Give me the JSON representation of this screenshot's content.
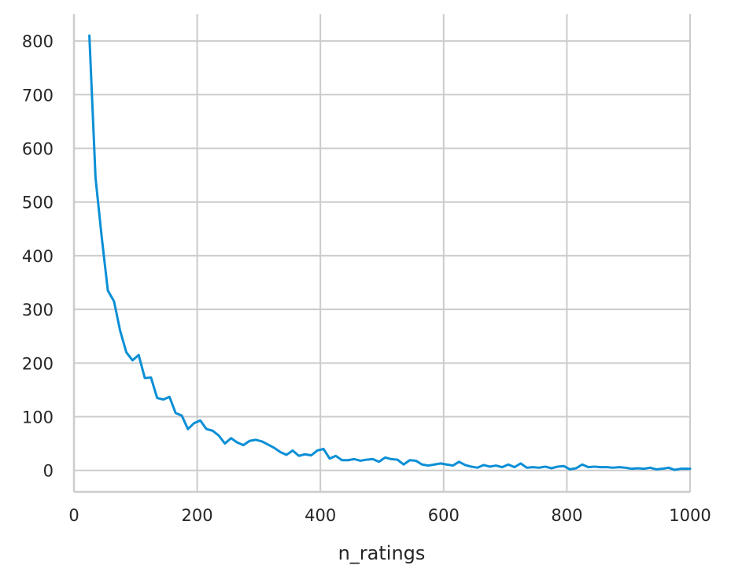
{
  "chart_data": {
    "type": "line",
    "title": "",
    "xlabel": "n_ratings",
    "ylabel": "",
    "xlim": [
      0,
      1000
    ],
    "ylim": [
      -40,
      850
    ],
    "xticks": [
      0,
      200,
      400,
      600,
      800,
      1000
    ],
    "yticks": [
      0,
      100,
      200,
      300,
      400,
      500,
      600,
      700,
      800
    ],
    "grid": true,
    "legend": "none",
    "line_color": "#0a8fd6",
    "series": [
      {
        "x": [
          25,
          35,
          45,
          55,
          65,
          75,
          85,
          95,
          105,
          115,
          125,
          135,
          145,
          155,
          165,
          175,
          185,
          195,
          205,
          215,
          225,
          235,
          245,
          255,
          265,
          275,
          285,
          295,
          305,
          315,
          325,
          335,
          345,
          355,
          365,
          375,
          385,
          395,
          405,
          415,
          425,
          435,
          445,
          455,
          465,
          475,
          485,
          495,
          505,
          515,
          525,
          535,
          545,
          555,
          565,
          575,
          585,
          595,
          605,
          615,
          625,
          635,
          645,
          655,
          665,
          675,
          685,
          695,
          705,
          715,
          725,
          735,
          745,
          755,
          765,
          775,
          785,
          795,
          805,
          815,
          825,
          835,
          845,
          855,
          865,
          875,
          885,
          895,
          905,
          915,
          925,
          935,
          945,
          955,
          965,
          975,
          985,
          995,
          1000
        ],
        "y": [
          810,
          545,
          435,
          335,
          315,
          260,
          220,
          205,
          215,
          172,
          173,
          135,
          132,
          137,
          107,
          102,
          77,
          88,
          93,
          77,
          74,
          65,
          50,
          60,
          52,
          47,
          55,
          57,
          54,
          48,
          42,
          34,
          29,
          37,
          27,
          30,
          28,
          37,
          40,
          22,
          27,
          19,
          19,
          21,
          18,
          20,
          21,
          16,
          24,
          21,
          20,
          11,
          19,
          18,
          11,
          9,
          11,
          13,
          11,
          9,
          16,
          10,
          7,
          5,
          10,
          7,
          9,
          6,
          11,
          6,
          13,
          5,
          6,
          5,
          7,
          4,
          7,
          8,
          2,
          4,
          11,
          6,
          7,
          6,
          6,
          5,
          6,
          5,
          3,
          4,
          3,
          5,
          2,
          3,
          5,
          1,
          3,
          3,
          3
        ]
      }
    ]
  }
}
